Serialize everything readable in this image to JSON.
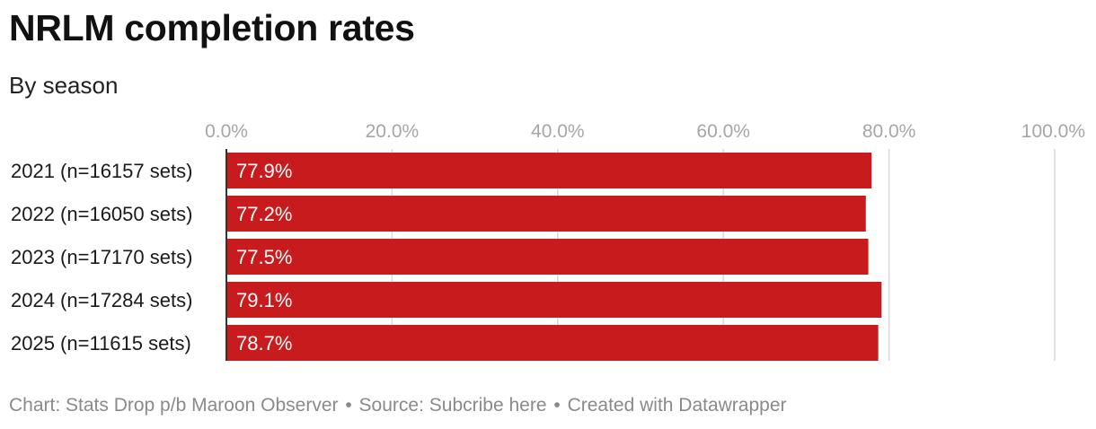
{
  "header": {
    "title": "NRLM completion rates",
    "subtitle": "By season"
  },
  "footer": {
    "chart_credit": "Chart: Stats Drop p/b Maroon Observer",
    "separator": "•",
    "source": "Source: Subcribe here",
    "created_with": "Created with Datawrapper"
  },
  "colors": {
    "bar": "#c71b1e",
    "bar_label": "#ffffff",
    "gridline": "#d9d9d9",
    "axis_tick_label": "#a6a6a6",
    "baseline": "#333333"
  },
  "chart_data": {
    "type": "bar",
    "orientation": "horizontal",
    "title": "NRLM completion rates",
    "subtitle": "By season",
    "categories": [
      "2021 (n=16157 sets)",
      "2022 (n=16050 sets)",
      "2023 (n=17170 sets)",
      "2024 (n=17284 sets)",
      "2025 (n=11615 sets)"
    ],
    "values": [
      77.9,
      77.2,
      77.5,
      79.1,
      78.7
    ],
    "value_labels": [
      "77.9%",
      "77.2%",
      "77.5%",
      "79.1%",
      "78.7%"
    ],
    "xlim": [
      0,
      100
    ],
    "x_ticks": [
      0,
      20,
      40,
      60,
      80,
      100
    ],
    "x_tick_labels": [
      "0.0%",
      "20.0%",
      "40.0%",
      "60.0%",
      "80.0%",
      "100.0%"
    ],
    "tick_position": "top",
    "grid": true
  }
}
